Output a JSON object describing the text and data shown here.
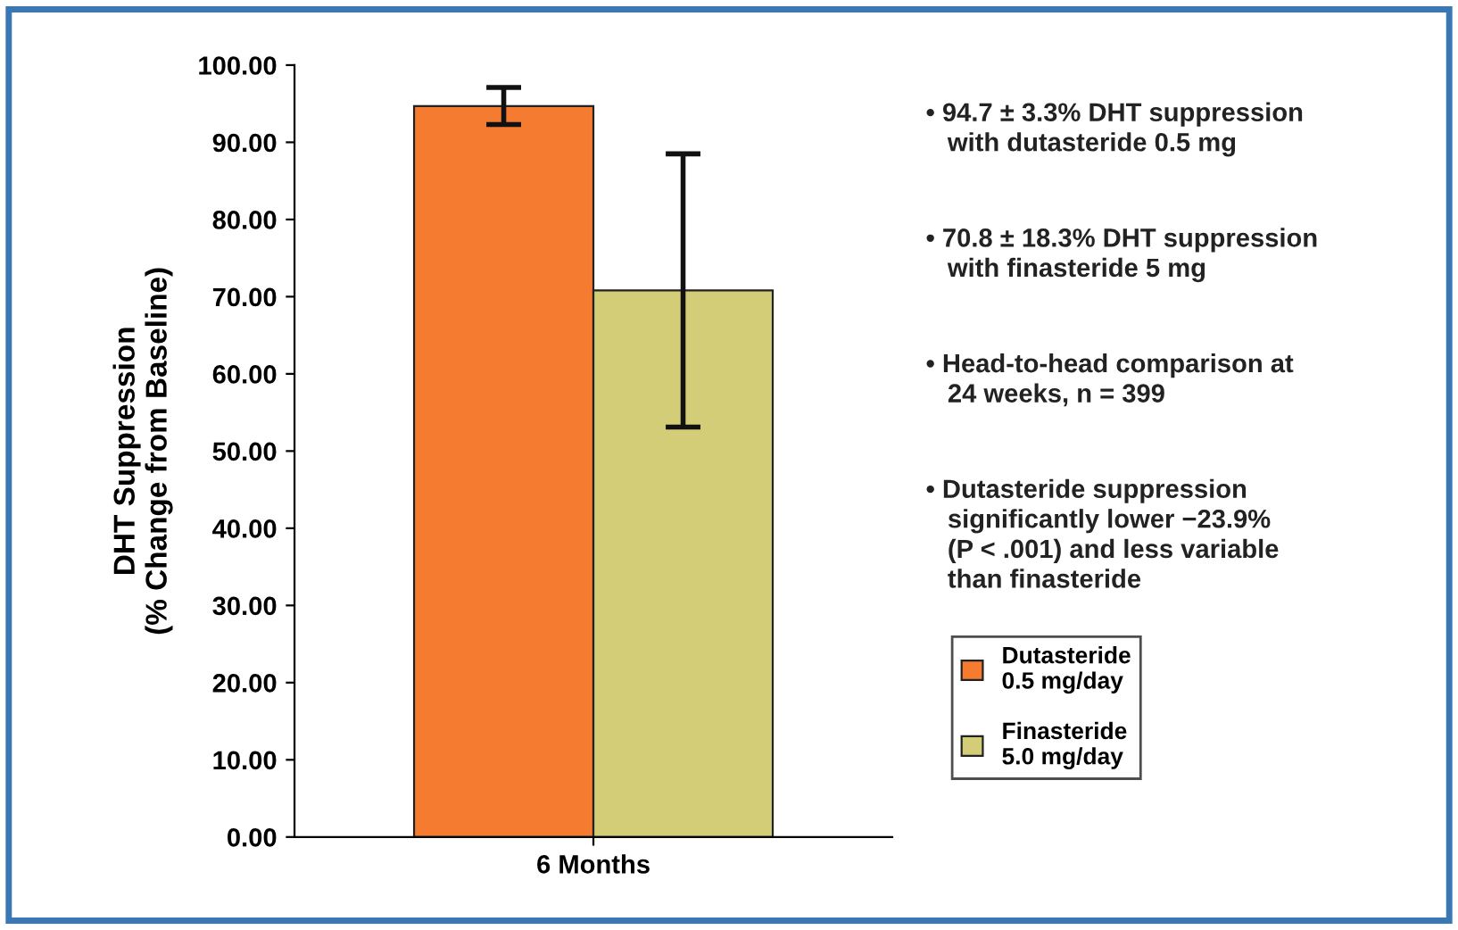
{
  "chart_data": {
    "type": "bar",
    "categories": [
      "6 Months"
    ],
    "series": [
      {
        "name": "Dutasteride\n0.5 mg/day",
        "color": "#f47b2f",
        "values": [
          94.7
        ],
        "errors": [
          2.4
        ]
      },
      {
        "name": "Finasteride\n5.0 mg/day",
        "color": "#d3cd78",
        "values": [
          70.8
        ],
        "errors": [
          17.7
        ]
      }
    ],
    "ylabel": "DHT Suppression\n(% Change from Baseline)",
    "ylim": [
      0,
      100
    ],
    "yticks": [
      {
        "value": 0,
        "label": "0.00"
      },
      {
        "value": 10,
        "label": "10.00"
      },
      {
        "value": 20,
        "label": "20.00"
      },
      {
        "value": 30,
        "label": "30.00"
      },
      {
        "value": 40,
        "label": "40.00"
      },
      {
        "value": 50,
        "label": "50.00"
      },
      {
        "value": 60,
        "label": "60.00"
      },
      {
        "value": 70,
        "label": "70.00"
      },
      {
        "value": 80,
        "label": "80.00"
      },
      {
        "value": 90,
        "label": "90.00"
      },
      {
        "value": 100,
        "label": "100.00"
      }
    ],
    "annotations": [
      "• 94.7 ± 3.3% DHT suppression\n   with dutasteride 0.5 mg",
      "• 70.8 ± 18.3% DHT suppression\n   with finasteride 5 mg",
      "• Head-to-head comparison at\n   24 weeks, n = 399",
      "• Dutasteride suppression\n   significantly lower −23.9%\n   (P < .001) and less variable\n   than finasteride"
    ],
    "grid": false,
    "legend": "right"
  }
}
